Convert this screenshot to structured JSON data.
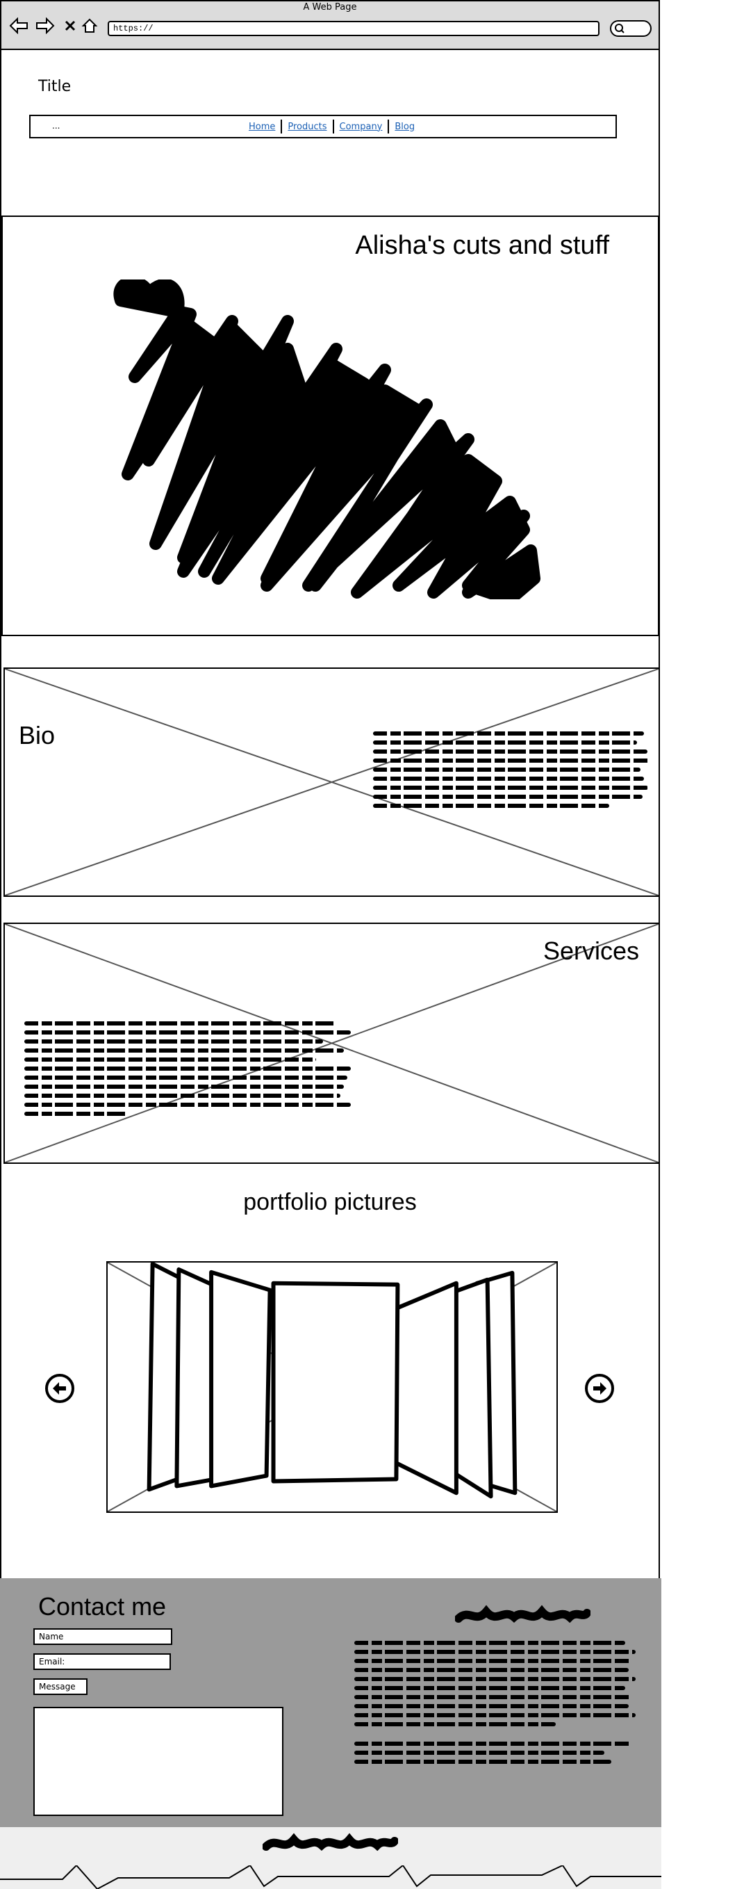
{
  "browser": {
    "window_title": "A Web Page",
    "url": "https://"
  },
  "site": {
    "title": "Title",
    "menu_dots": "...",
    "nav": [
      "Home",
      "Products",
      "Company",
      "Blog"
    ]
  },
  "hero": {
    "title": "Alisha's cuts and stuff"
  },
  "bio": {
    "title": "Bio",
    "text_lines": 9
  },
  "services": {
    "title": "Services",
    "text_lines": 11
  },
  "portfolio": {
    "title": "portfolio pictures"
  },
  "contact": {
    "title": "Contact me",
    "name_placeholder": "Name",
    "email_placeholder": "Email:",
    "message_label": "Message"
  },
  "colors": {
    "contact_bg": "#9a9a9a",
    "footer_bg": "#efefef",
    "link": "#1a5fb4"
  }
}
